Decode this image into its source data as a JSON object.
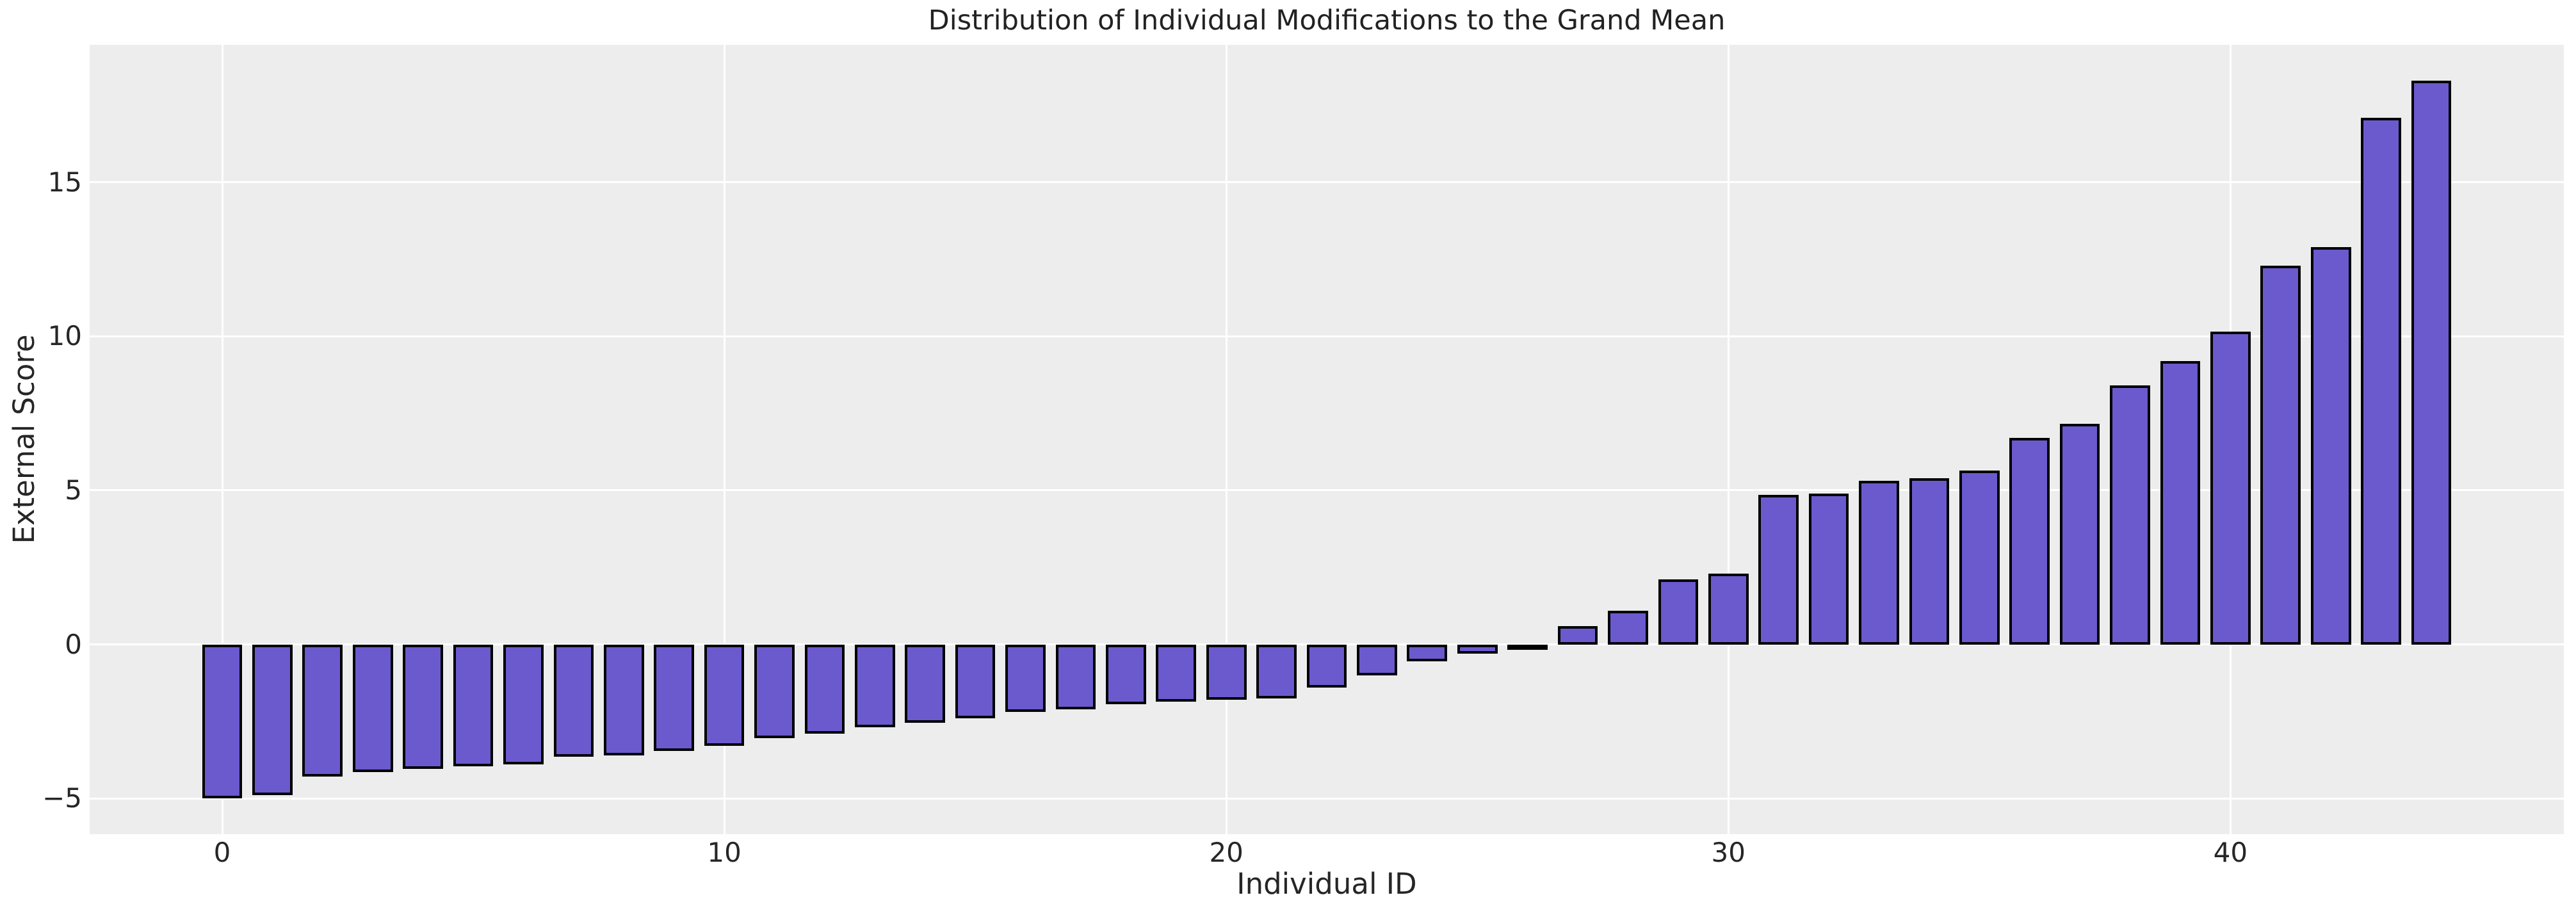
{
  "chart_data": {
    "type": "bar",
    "title": "Distribution of Individual Modifications to the Grand Mean",
    "xlabel": "Individual ID",
    "ylabel": "External Score",
    "x": [
      0,
      1,
      2,
      3,
      4,
      5,
      6,
      7,
      8,
      9,
      10,
      11,
      12,
      13,
      14,
      15,
      16,
      17,
      18,
      19,
      20,
      21,
      22,
      23,
      24,
      25,
      26,
      27,
      28,
      29,
      30,
      31,
      32,
      33,
      34,
      35,
      36,
      37,
      38,
      39,
      40,
      41,
      42,
      43,
      44
    ],
    "values": [
      -5.0,
      -4.9,
      -4.3,
      -4.15,
      -4.05,
      -3.95,
      -3.9,
      -3.65,
      -3.6,
      -3.45,
      -3.3,
      -3.05,
      -2.9,
      -2.7,
      -2.55,
      -2.4,
      -2.2,
      -2.1,
      -1.95,
      -1.85,
      -1.8,
      -1.75,
      -1.4,
      -1.0,
      -0.55,
      -0.3,
      -0.05,
      0.6,
      1.1,
      2.1,
      2.3,
      4.85,
      4.9,
      5.3,
      5.4,
      5.65,
      6.7,
      7.15,
      8.4,
      9.2,
      10.15,
      12.3,
      12.9,
      17.1,
      18.3
    ],
    "bar_width": 0.8,
    "xlim": [
      -2.64,
      46.64
    ],
    "ylim": [
      -6.16,
      19.46
    ],
    "xticks": {
      "values": [
        0,
        10,
        20,
        30,
        40
      ],
      "labels": [
        "0",
        "10",
        "20",
        "30",
        "40"
      ]
    },
    "yticks": {
      "values": [
        15,
        10,
        5,
        0,
        -5
      ],
      "labels": [
        "15",
        "10",
        "5",
        "0",
        "−5"
      ]
    },
    "grid": true,
    "legend_position": "none",
    "colors": {
      "bar_fill": "#6a5acd",
      "bar_edge": "#000000",
      "plot_background": "#ededed",
      "gridline": "#ffffff",
      "text": "#262626",
      "figure_background": "#ffffff"
    }
  }
}
